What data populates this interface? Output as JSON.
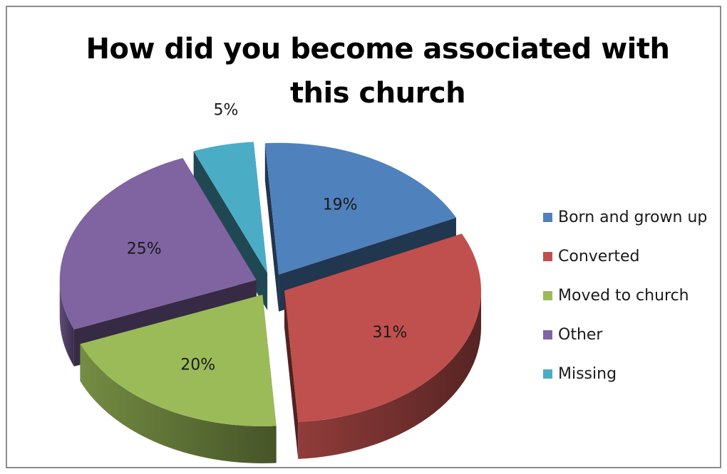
{
  "chart_data": {
    "type": "pie",
    "title": "How did you become associated with this church",
    "title_lines": [
      "How did you become associated with",
      "this church"
    ],
    "categories": [
      "Born and grown up",
      "Converted",
      "Moved to church",
      "Other",
      "Missing"
    ],
    "values": [
      19,
      31,
      20,
      25,
      5
    ],
    "data_labels": [
      "19%",
      "31%",
      "20%",
      "25%",
      "5%"
    ],
    "colors": [
      "#4f81bd",
      "#c0504d",
      "#9bbb59",
      "#8064a2",
      "#4bacc6"
    ],
    "style": "3D exploded pie",
    "legend_position": "right"
  }
}
